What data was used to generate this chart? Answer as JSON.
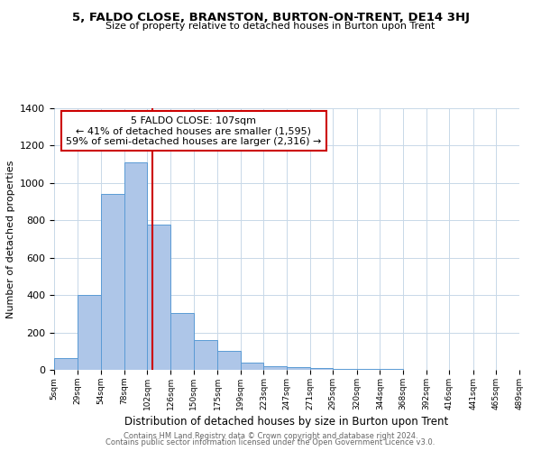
{
  "title": "5, FALDO CLOSE, BRANSTON, BURTON-ON-TRENT, DE14 3HJ",
  "subtitle": "Size of property relative to detached houses in Burton upon Trent",
  "xlabel": "Distribution of detached houses by size in Burton upon Trent",
  "ylabel": "Number of detached properties",
  "bin_edges": [
    5,
    29,
    54,
    78,
    102,
    126,
    150,
    175,
    199,
    223,
    247,
    271,
    295,
    320,
    344,
    368,
    392,
    416,
    441,
    465,
    489
  ],
  "bar_heights": [
    65,
    400,
    940,
    1110,
    775,
    305,
    160,
    100,
    38,
    20,
    15,
    8,
    5,
    3,
    3,
    2,
    1,
    1,
    1,
    1
  ],
  "bar_color": "#aec6e8",
  "bar_edgecolor": "#5b9bd5",
  "vline_x": 107,
  "vline_color": "#cc0000",
  "ylim": [
    0,
    1400
  ],
  "yticks": [
    0,
    200,
    400,
    600,
    800,
    1000,
    1200,
    1400
  ],
  "annotation_title": "5 FALDO CLOSE: 107sqm",
  "annotation_line1": "← 41% of detached houses are smaller (1,595)",
  "annotation_line2": "59% of semi-detached houses are larger (2,316) →",
  "annotation_box_color": "#ffffff",
  "annotation_box_edgecolor": "#cc0000",
  "footer1": "Contains HM Land Registry data © Crown copyright and database right 2024.",
  "footer2": "Contains public sector information licensed under the Open Government Licence v3.0.",
  "background_color": "#ffffff",
  "grid_color": "#c8d8e8",
  "tick_labels": [
    "5sqm",
    "29sqm",
    "54sqm",
    "78sqm",
    "102sqm",
    "126sqm",
    "150sqm",
    "175sqm",
    "199sqm",
    "223sqm",
    "247sqm",
    "271sqm",
    "295sqm",
    "320sqm",
    "344sqm",
    "368sqm",
    "392sqm",
    "416sqm",
    "441sqm",
    "465sqm",
    "489sqm"
  ]
}
